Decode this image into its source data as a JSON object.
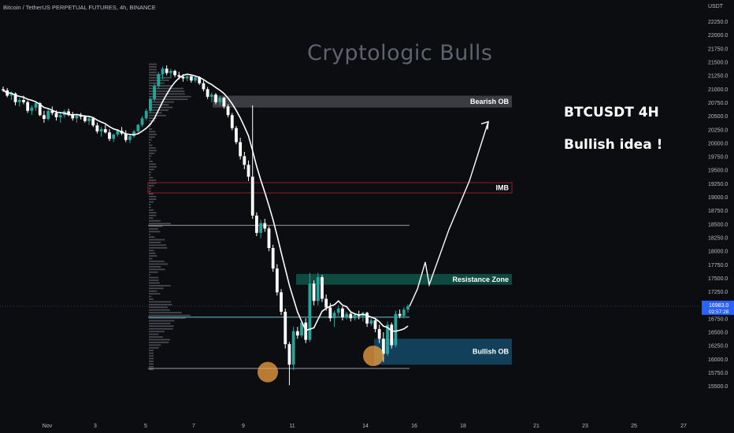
{
  "header": {
    "symbol": "Bitcoin / TetherUS PERPETUAL FUTURES, 4h, BINANCE"
  },
  "watermark": "Cryptologic Bulls",
  "idea": {
    "line1": "BTCUSDT 4H",
    "line2": "Bullish idea !"
  },
  "price_axis": {
    "unit": "USDT"
  },
  "colors": {
    "up": "#26a69a",
    "down": "#ffffff",
    "ma": "#ffffff",
    "bearish_ob": "#3b3c42",
    "bullish_ob": "#12405a",
    "resistance": "#0f4a40",
    "imb": "#b1242c",
    "current": "#2962ff"
  },
  "chart_data": {
    "type": "candlestick",
    "title": "",
    "ylim": [
      15400,
      22500
    ],
    "y_ticks": [
      "22250.0",
      "22000.0",
      "21750.0",
      "21500.0",
      "21250.0",
      "21000.0",
      "20750.0",
      "20500.0",
      "20250.0",
      "20000.0",
      "19750.0",
      "19500.0",
      "19250.0",
      "19000.0",
      "18750.0",
      "18500.0",
      "18250.0",
      "18000.0",
      "17750.0",
      "17500.0",
      "17250.0",
      "17000.0",
      "16750.0",
      "16500.0",
      "16250.0",
      "16000.0",
      "15750.0",
      "15500.0"
    ],
    "x_ticks": [
      "Nov",
      "3",
      "5",
      "7",
      "9",
      "11",
      "14",
      "16",
      "18",
      "21",
      "23",
      "25",
      "27"
    ],
    "current_price": {
      "value": "16983.0",
      "countdown": "02:57:28"
    },
    "zones": [
      {
        "label": "Bearish OB",
        "y_top": 20880,
        "y_bottom": 20660
      },
      {
        "label": "IMB",
        "y_top": 19270,
        "y_bottom": 19080
      },
      {
        "label": "Resistance Zone",
        "y_top": 17580,
        "y_bottom": 17380
      },
      {
        "label": "Bullish OB",
        "y_top": 16380,
        "y_bottom": 15900
      }
    ],
    "levels": [
      18480,
      16780,
      15830
    ],
    "highlight_lows": [
      15850,
      16150
    ],
    "projection": [
      16980,
      17300,
      17800,
      17380,
      18400,
      19300,
      20400
    ],
    "candles": [
      [
        21000,
        21050,
        20950,
        20980
      ],
      [
        20980,
        21020,
        20850,
        20880
      ],
      [
        20880,
        20960,
        20800,
        20920
      ],
      [
        20920,
        20940,
        20700,
        20760
      ],
      [
        20760,
        20840,
        20680,
        20800
      ],
      [
        20800,
        20880,
        20720,
        20760
      ],
      [
        20760,
        20790,
        20560,
        20600
      ],
      [
        20600,
        20700,
        20520,
        20660
      ],
      [
        20660,
        20780,
        20600,
        20740
      ],
      [
        20740,
        20760,
        20500,
        20520
      ],
      [
        20520,
        20600,
        20380,
        20450
      ],
      [
        20450,
        20640,
        20420,
        20600
      ],
      [
        20600,
        20680,
        20520,
        20560
      ],
      [
        20560,
        20610,
        20420,
        20480
      ],
      [
        20480,
        20560,
        20380,
        20520
      ],
      [
        20520,
        20620,
        20470,
        20590
      ],
      [
        20590,
        20640,
        20500,
        20540
      ],
      [
        20540,
        20580,
        20420,
        20460
      ],
      [
        20460,
        20540,
        20380,
        20510
      ],
      [
        20510,
        20560,
        20440,
        20490
      ],
      [
        20490,
        20520,
        20380,
        20410
      ],
      [
        20410,
        20490,
        20340,
        20460
      ],
      [
        20460,
        20480,
        20300,
        20330
      ],
      [
        20330,
        20380,
        20180,
        20220
      ],
      [
        20220,
        20300,
        20120,
        20260
      ],
      [
        20260,
        20340,
        20180,
        20200
      ],
      [
        20200,
        20260,
        20040,
        20080
      ],
      [
        20080,
        20180,
        20020,
        20160
      ],
      [
        20160,
        20260,
        20120,
        20230
      ],
      [
        20230,
        20300,
        20150,
        20180
      ],
      [
        20180,
        20240,
        20020,
        20060
      ],
      [
        20060,
        20160,
        20000,
        20130
      ],
      [
        20130,
        20250,
        20100,
        20220
      ],
      [
        20220,
        20360,
        20180,
        20340
      ],
      [
        20340,
        20500,
        20300,
        20460
      ],
      [
        20460,
        20640,
        20420,
        20600
      ],
      [
        20600,
        20850,
        20560,
        20820
      ],
      [
        20820,
        21100,
        20780,
        21060
      ],
      [
        21060,
        21320,
        21000,
        21280
      ],
      [
        21280,
        21420,
        21180,
        21380
      ],
      [
        21380,
        21440,
        21260,
        21300
      ],
      [
        21300,
        21380,
        21200,
        21340
      ],
      [
        21340,
        21360,
        21220,
        21260
      ],
      [
        21260,
        21320,
        21180,
        21230
      ],
      [
        21230,
        21280,
        21140,
        21200
      ],
      [
        21200,
        21260,
        21150,
        21240
      ],
      [
        21240,
        21250,
        21120,
        21160
      ],
      [
        21160,
        21260,
        21120,
        21220
      ],
      [
        21220,
        21240,
        21080,
        21110
      ],
      [
        21110,
        21160,
        20960,
        21000
      ],
      [
        21000,
        21040,
        20820,
        20860
      ],
      [
        20860,
        20940,
        20760,
        20900
      ],
      [
        20900,
        20930,
        20720,
        20760
      ],
      [
        20760,
        20880,
        20700,
        20840
      ],
      [
        20840,
        20860,
        20640,
        20680
      ],
      [
        20680,
        20720,
        20480,
        20520
      ],
      [
        20520,
        20560,
        20240,
        20280
      ],
      [
        20280,
        20320,
        19980,
        20020
      ],
      [
        20020,
        20100,
        19700,
        19760
      ],
      [
        19760,
        19840,
        19520,
        19600
      ],
      [
        19600,
        19680,
        19300,
        19380
      ],
      [
        19380,
        20700,
        18600,
        18660
      ],
      [
        18660,
        18720,
        18280,
        18340
      ],
      [
        18340,
        18580,
        18240,
        18520
      ],
      [
        18520,
        18600,
        18360,
        18420
      ],
      [
        18420,
        18460,
        18000,
        18060
      ],
      [
        18060,
        18120,
        17620,
        17680
      ],
      [
        17680,
        17760,
        17180,
        17240
      ],
      [
        17240,
        17300,
        16820,
        16880
      ],
      [
        16880,
        16940,
        16200,
        16280
      ],
      [
        16280,
        16320,
        15520,
        15900
      ],
      [
        15900,
        16600,
        15800,
        16520
      ],
      [
        16520,
        16600,
        16380,
        16440
      ],
      [
        16440,
        16720,
        16400,
        16680
      ],
      [
        16680,
        16760,
        16300,
        16360
      ],
      [
        16360,
        17600,
        16320,
        17400
      ],
      [
        17400,
        17460,
        17000,
        17080
      ],
      [
        17080,
        17600,
        17000,
        17520
      ],
      [
        17520,
        17560,
        17060,
        17120
      ],
      [
        17120,
        17200,
        16900,
        16960
      ],
      [
        16960,
        17040,
        16700,
        16760
      ],
      [
        16760,
        16900,
        16600,
        16860
      ],
      [
        16860,
        17000,
        16800,
        16940
      ],
      [
        16940,
        16980,
        16720,
        16780
      ],
      [
        16780,
        16880,
        16740,
        16840
      ],
      [
        16840,
        16880,
        16700,
        16760
      ],
      [
        16760,
        16860,
        16720,
        16820
      ],
      [
        16820,
        16900,
        16740,
        16800
      ],
      [
        16800,
        16880,
        16700,
        16860
      ],
      [
        16860,
        16880,
        16600,
        16660
      ],
      [
        16660,
        16760,
        16620,
        16720
      ],
      [
        16720,
        16760,
        16500,
        16560
      ],
      [
        16560,
        16640,
        16300,
        16380
      ],
      [
        16380,
        16500,
        15950,
        16100
      ],
      [
        16100,
        16700,
        16060,
        16640
      ],
      [
        16640,
        16680,
        16200,
        16260
      ],
      [
        16260,
        16900,
        16220,
        16840
      ],
      [
        16840,
        16920,
        16760,
        16800
      ],
      [
        16800,
        16960,
        16760,
        16920
      ],
      [
        16920,
        17020,
        16860,
        16983
      ]
    ]
  }
}
